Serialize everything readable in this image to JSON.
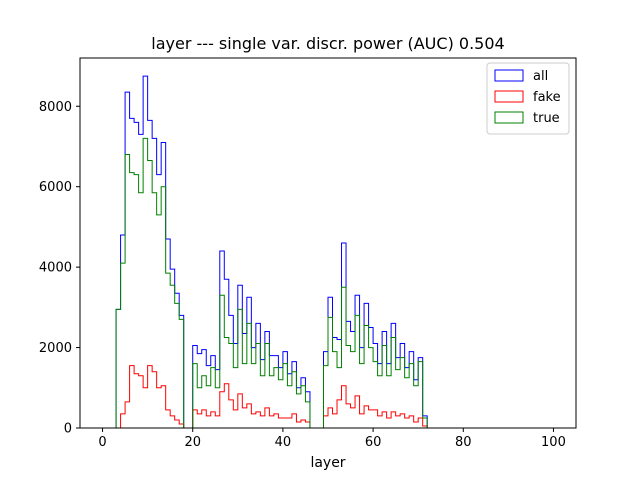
{
  "chart_data": {
    "type": "histogram",
    "title": "layer --- single var. discr. power (AUC) 0.504",
    "xlabel": "layer",
    "ylabel": "",
    "xlim": [
      -5,
      105
    ],
    "ylim": [
      0,
      9200
    ],
    "xticks": [
      0,
      20,
      40,
      60,
      80,
      100
    ],
    "yticks": [
      0,
      2000,
      4000,
      6000,
      8000
    ],
    "bins": {
      "start": 0,
      "width": 1,
      "count": 100
    },
    "legend_position": "top-right",
    "grid": false,
    "series": [
      {
        "name": "all",
        "color": "#0000ff",
        "values": [
          0,
          0,
          0,
          2950,
          4800,
          8350,
          7700,
          7600,
          7300,
          8750,
          7650,
          7200,
          6300,
          7100,
          4700,
          3950,
          3350,
          2800,
          0,
          0,
          2050,
          1850,
          1950,
          1550,
          1800,
          1450,
          4400,
          3700,
          2800,
          2100,
          3550,
          2350,
          3250,
          2000,
          2600,
          1700,
          2400,
          1800,
          1800,
          1500,
          1900,
          1350,
          1650,
          1000,
          1250,
          900,
          0,
          0,
          0,
          1900,
          3250,
          2250,
          2200,
          4600,
          2650,
          2400,
          3300,
          2000,
          3100,
          2500,
          2100,
          1600,
          2400,
          1600,
          2600,
          1750,
          2100,
          1500,
          1900,
          1200,
          1750,
          300,
          0,
          0,
          0,
          0,
          0,
          0,
          0,
          0,
          0,
          0,
          0,
          0,
          0,
          0,
          0,
          0,
          0,
          0,
          0,
          0,
          0,
          0,
          0,
          0,
          0,
          0,
          0,
          0
        ]
      },
      {
        "name": "fake",
        "color": "#ff0000",
        "values": [
          0,
          0,
          0,
          0,
          350,
          650,
          1550,
          1350,
          1300,
          1000,
          1550,
          1400,
          1000,
          1050,
          450,
          300,
          200,
          100,
          0,
          0,
          450,
          350,
          450,
          300,
          400,
          300,
          900,
          1100,
          700,
          450,
          850,
          500,
          600,
          350,
          400,
          300,
          500,
          300,
          350,
          250,
          250,
          250,
          350,
          150,
          200,
          150,
          0,
          0,
          0,
          300,
          500,
          350,
          700,
          1050,
          600,
          500,
          800,
          350,
          550,
          450,
          450,
          300,
          400,
          250,
          400,
          300,
          350,
          250,
          300,
          150,
          250,
          50,
          0,
          0,
          0,
          0,
          0,
          0,
          0,
          0,
          0,
          0,
          0,
          0,
          0,
          0,
          0,
          0,
          0,
          0,
          0,
          0,
          0,
          0,
          0,
          0,
          0,
          0,
          0,
          0
        ]
      },
      {
        "name": "true",
        "color": "#008000",
        "values": [
          0,
          0,
          0,
          2950,
          4100,
          6800,
          6350,
          6300,
          5850,
          7200,
          6650,
          5850,
          5300,
          6000,
          3850,
          3550,
          3100,
          2700,
          0,
          0,
          1600,
          1000,
          1300,
          1050,
          1500,
          1000,
          3300,
          2250,
          2100,
          1500,
          2950,
          1600,
          2600,
          1600,
          2100,
          1300,
          2100,
          1300,
          1500,
          1200,
          1600,
          1050,
          1400,
          850,
          1050,
          650,
          0,
          0,
          0,
          1550,
          2750,
          1900,
          1500,
          3500,
          2050,
          1900,
          2800,
          1600,
          2550,
          2000,
          1650,
          1300,
          2050,
          1300,
          2250,
          1450,
          1750,
          1250,
          1600,
          1050,
          1650,
          250,
          0,
          0,
          0,
          0,
          0,
          0,
          0,
          0,
          0,
          0,
          0,
          0,
          0,
          0,
          0,
          0,
          0,
          0,
          0,
          0,
          0,
          0,
          0,
          0,
          0,
          0,
          0,
          0
        ]
      }
    ]
  }
}
